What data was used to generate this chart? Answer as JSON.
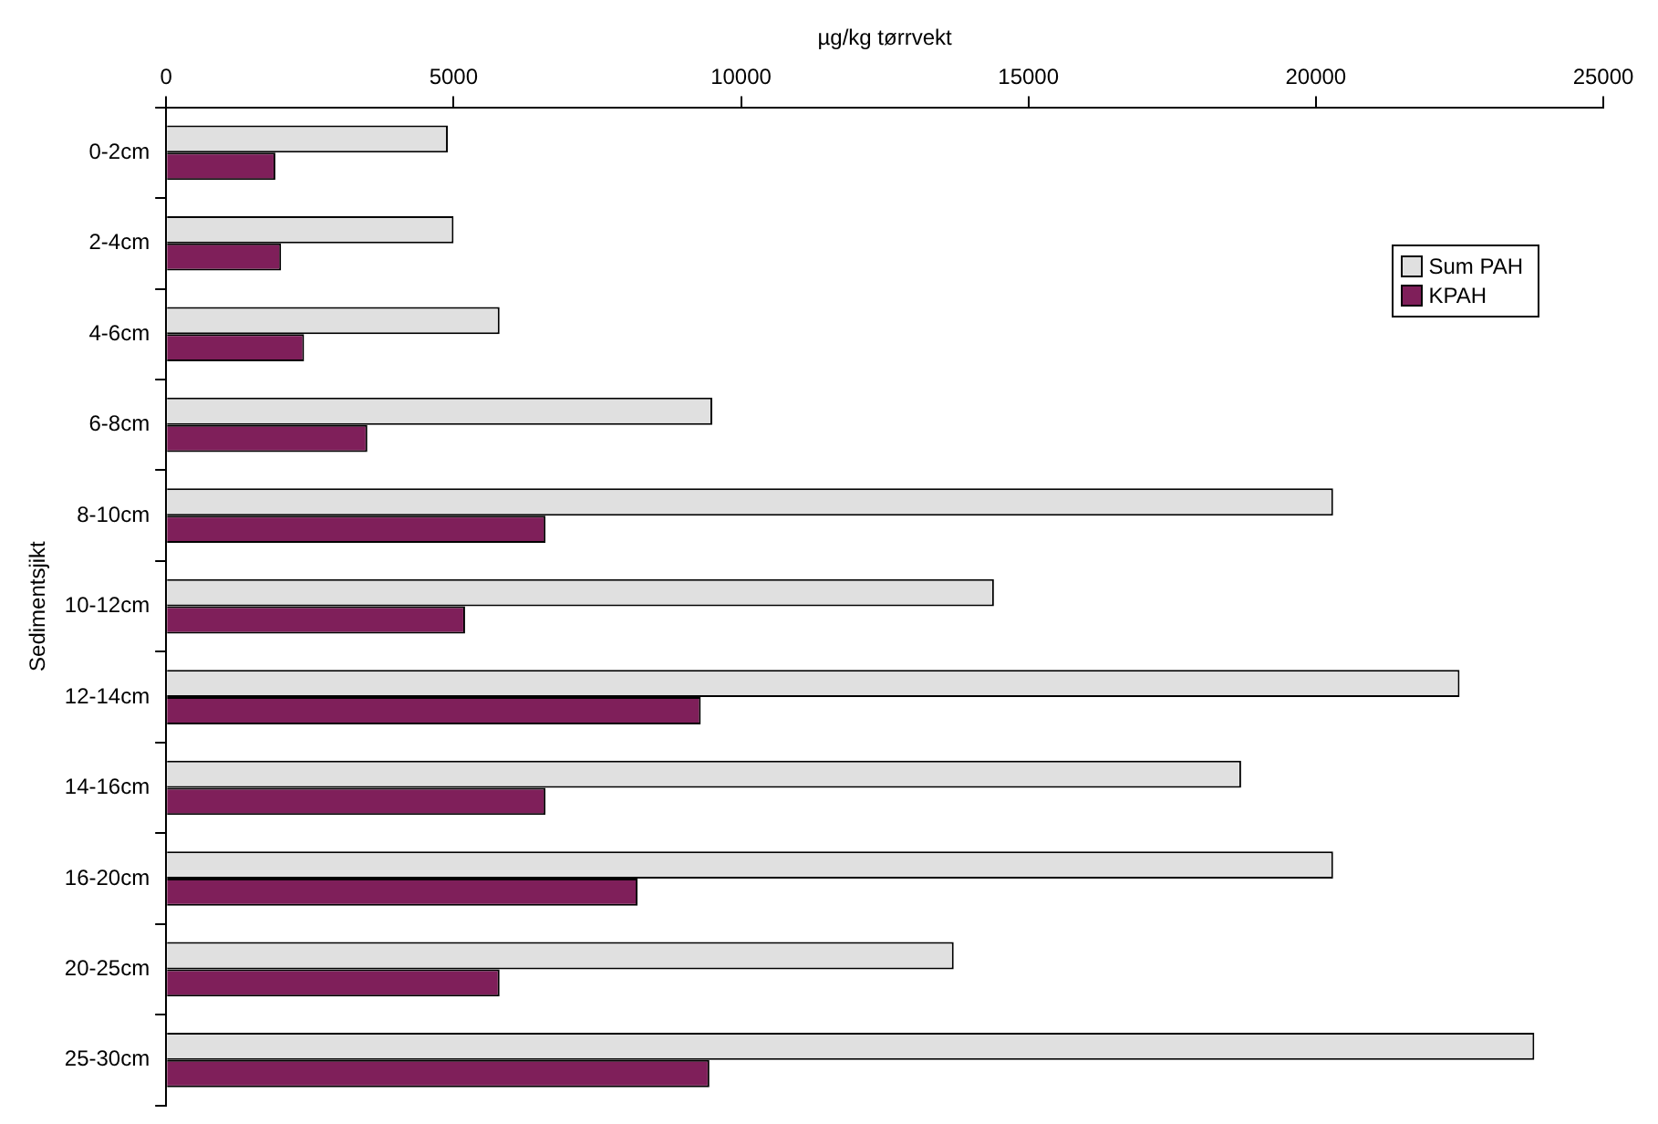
{
  "chart_data": {
    "type": "bar",
    "orientation": "horizontal",
    "xlabel": "µg/kg tørrvekt",
    "ylabel": "Sedimentsjikt",
    "categories": [
      "0-2cm",
      "2-4cm",
      "4-6cm",
      "6-8cm",
      "8-10cm",
      "10-12cm",
      "12-14cm",
      "14-16cm",
      "16-20cm",
      "20-25cm",
      "25-30cm"
    ],
    "series": [
      {
        "name": "Sum PAH",
        "color": "#e0e0e0",
        "values": [
          4900,
          5000,
          5800,
          9500,
          20300,
          14400,
          22500,
          18700,
          20300,
          13700,
          23800
        ]
      },
      {
        "name": "KPAH",
        "color": "#7f1f5a",
        "values": [
          1900,
          2000,
          2400,
          3500,
          6600,
          5200,
          9300,
          6600,
          8200,
          5800,
          9450
        ]
      }
    ],
    "xlim": [
      0,
      25000
    ],
    "xticks": [
      0,
      5000,
      10000,
      15000,
      20000,
      25000
    ],
    "grid": false,
    "legend": "top right"
  }
}
